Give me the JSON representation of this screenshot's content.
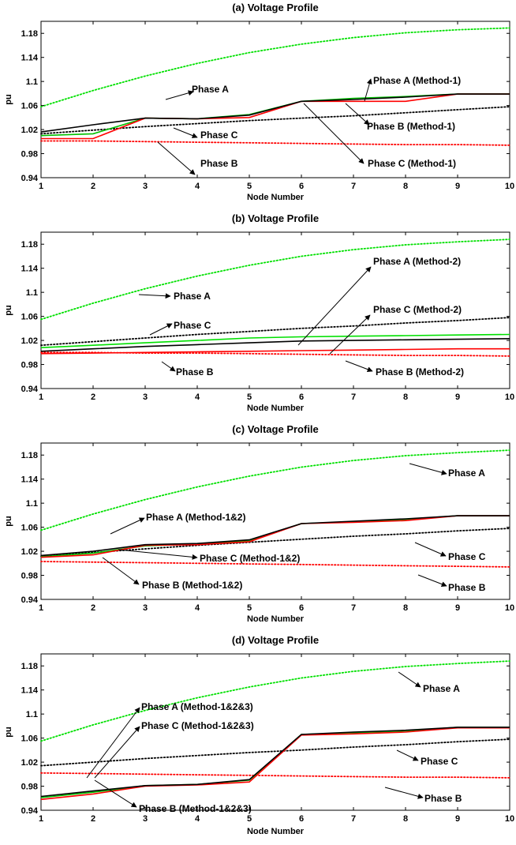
{
  "chart_data": [
    {
      "type": "line",
      "title": "(a) Voltage Profile",
      "xlabel": "Node Number",
      "ylabel": "pu",
      "xlim": [
        1,
        10
      ],
      "ylim": [
        0.94,
        1.2
      ],
      "xticks": [
        "1",
        "2",
        "3",
        "4",
        "5",
        "6",
        "7",
        "8",
        "9",
        "10"
      ],
      "yticks": [
        "0.94",
        "0.98",
        "1.02",
        "1.06",
        "1.1",
        "1.14",
        "1.18"
      ],
      "ytick_values": [
        0.94,
        0.98,
        1.02,
        1.06,
        1.1,
        1.14,
        1.18
      ],
      "series": [
        {
          "name": "Phase A",
          "color": "#00e000",
          "style": "dotted",
          "x": [
            1,
            2,
            3,
            4,
            5,
            6,
            7,
            8,
            9,
            10
          ],
          "y": [
            1.058,
            1.085,
            1.109,
            1.13,
            1.148,
            1.162,
            1.173,
            1.181,
            1.186,
            1.189
          ]
        },
        {
          "name": "Phase C",
          "color": "#000000",
          "style": "dotted",
          "x": [
            1,
            2,
            3,
            4,
            5,
            6,
            7,
            8,
            9,
            10
          ],
          "y": [
            1.013,
            1.019,
            1.025,
            1.03,
            1.035,
            1.039,
            1.043,
            1.048,
            1.053,
            1.058
          ]
        },
        {
          "name": "Phase B",
          "color": "#ff0000",
          "style": "dotted",
          "x": [
            1,
            2,
            3,
            4,
            5,
            6,
            7,
            8,
            9,
            10
          ],
          "y": [
            1.001,
            1.001,
            1.0,
            0.999,
            0.998,
            0.997,
            0.996,
            0.995,
            0.995,
            0.994
          ]
        },
        {
          "name": "Phase A (Method-1)",
          "color": "#00c000",
          "style": "solid",
          "x": [
            1,
            2,
            3,
            4,
            5,
            6,
            7,
            8,
            9,
            10
          ],
          "y": [
            1.01,
            1.013,
            1.039,
            1.038,
            1.045,
            1.067,
            1.072,
            1.075,
            1.079,
            1.079
          ]
        },
        {
          "name": "Phase B (Method-1)",
          "color": "#ff0000",
          "style": "solid",
          "x": [
            1,
            2,
            3,
            4,
            5,
            6,
            7,
            8,
            9,
            10
          ],
          "y": [
            1.005,
            1.005,
            1.039,
            1.038,
            1.04,
            1.067,
            1.067,
            1.067,
            1.079,
            1.079
          ]
        },
        {
          "name": "Phase C (Method-1)",
          "color": "#000000",
          "style": "solid",
          "x": [
            1,
            2,
            3,
            4,
            5,
            6,
            7,
            8,
            9,
            10
          ],
          "y": [
            1.016,
            1.028,
            1.039,
            1.038,
            1.044,
            1.067,
            1.07,
            1.074,
            1.079,
            1.079
          ]
        }
      ],
      "annotations": [
        "Phase A",
        "Phase A (Method-1)",
        "Phase B (Method-1)",
        "Phase C",
        "Phase B",
        "Phase C (Method-1)"
      ]
    },
    {
      "type": "line",
      "title": "(b) Voltage Profile",
      "xlabel": "Node Number",
      "ylabel": "pu",
      "xlim": [
        1,
        10
      ],
      "ylim": [
        0.94,
        1.2
      ],
      "xticks": [
        "1",
        "2",
        "3",
        "4",
        "5",
        "6",
        "7",
        "8",
        "9",
        "10"
      ],
      "yticks": [
        "0.94",
        "0.98",
        "1.02",
        "1.06",
        "1.1",
        "1.14",
        "1.18"
      ],
      "ytick_values": [
        0.94,
        0.98,
        1.02,
        1.06,
        1.1,
        1.14,
        1.18
      ],
      "series": [
        {
          "name": "Phase A",
          "color": "#00e000",
          "style": "dotted",
          "x": [
            1,
            2,
            3,
            4,
            5,
            6,
            7,
            8,
            9,
            10
          ],
          "y": [
            1.055,
            1.082,
            1.106,
            1.127,
            1.145,
            1.16,
            1.171,
            1.179,
            1.184,
            1.188
          ]
        },
        {
          "name": "Phase C",
          "color": "#000000",
          "style": "dotted",
          "x": [
            1,
            2,
            3,
            4,
            5,
            6,
            7,
            8,
            9,
            10
          ],
          "y": [
            1.012,
            1.018,
            1.024,
            1.03,
            1.035,
            1.04,
            1.044,
            1.049,
            1.053,
            1.058
          ]
        },
        {
          "name": "Phase B",
          "color": "#ff0000",
          "style": "dotted",
          "x": [
            1,
            2,
            3,
            4,
            5,
            6,
            7,
            8,
            9,
            10
          ],
          "y": [
            1.0,
            1.0,
            0.999,
            0.999,
            0.998,
            0.997,
            0.996,
            0.995,
            0.995,
            0.994
          ]
        },
        {
          "name": "Phase A (Method-2)",
          "color": "#00e000",
          "style": "solid",
          "x": [
            1,
            2,
            3,
            4,
            5,
            6,
            7,
            8,
            9,
            10
          ],
          "y": [
            1.008,
            1.012,
            1.016,
            1.02,
            1.024,
            1.026,
            1.027,
            1.028,
            1.029,
            1.03
          ]
        },
        {
          "name": "Phase C (Method-2)",
          "color": "#000000",
          "style": "solid",
          "x": [
            1,
            2,
            3,
            4,
            5,
            6,
            7,
            8,
            9,
            10
          ],
          "y": [
            1.002,
            1.006,
            1.01,
            1.013,
            1.016,
            1.019,
            1.02,
            1.021,
            1.022,
            1.023
          ]
        },
        {
          "name": "Phase B (Method-2)",
          "color": "#ff0000",
          "style": "solid",
          "x": [
            1,
            2,
            3,
            4,
            5,
            6,
            7,
            8,
            9,
            10
          ],
          "y": [
            0.998,
            0.999,
            1.0,
            1.001,
            1.002,
            1.003,
            1.004,
            1.005,
            1.006,
            1.006
          ]
        }
      ],
      "annotations": [
        "Phase A",
        "Phase C",
        "Phase B",
        "Phase A (Method-2)",
        "Phase C (Method-2)",
        "Phase B (Method-2)"
      ]
    },
    {
      "type": "line",
      "title": "(c) Voltage Profile",
      "xlabel": "Node Number",
      "ylabel": "pu",
      "xlim": [
        1,
        10
      ],
      "ylim": [
        0.94,
        1.2
      ],
      "xticks": [
        "1",
        "2",
        "3",
        "4",
        "5",
        "6",
        "7",
        "8",
        "9",
        "10"
      ],
      "yticks": [
        "0.94",
        "0.98",
        "1.02",
        "1.06",
        "1.1",
        "1.14",
        "1.18"
      ],
      "ytick_values": [
        0.94,
        0.98,
        1.02,
        1.06,
        1.1,
        1.14,
        1.18
      ],
      "series": [
        {
          "name": "Phase A",
          "color": "#00e000",
          "style": "dotted",
          "x": [
            1,
            2,
            3,
            4,
            5,
            6,
            7,
            8,
            9,
            10
          ],
          "y": [
            1.055,
            1.082,
            1.106,
            1.127,
            1.145,
            1.16,
            1.171,
            1.179,
            1.184,
            1.188
          ]
        },
        {
          "name": "Phase C",
          "color": "#000000",
          "style": "dotted",
          "x": [
            1,
            2,
            3,
            4,
            5,
            6,
            7,
            8,
            9,
            10
          ],
          "y": [
            1.012,
            1.018,
            1.024,
            1.03,
            1.035,
            1.04,
            1.045,
            1.049,
            1.054,
            1.058
          ]
        },
        {
          "name": "Phase B",
          "color": "#ff0000",
          "style": "dotted",
          "x": [
            1,
            2,
            3,
            4,
            5,
            6,
            7,
            8,
            9,
            10
          ],
          "y": [
            1.003,
            1.002,
            1.001,
            1.0,
            0.999,
            0.998,
            0.997,
            0.996,
            0.995,
            0.994
          ]
        },
        {
          "name": "Phase A (Method-1&2)",
          "color": "#00c000",
          "style": "solid",
          "x": [
            1,
            2,
            3,
            4,
            5,
            6,
            7,
            8,
            9,
            10
          ],
          "y": [
            1.011,
            1.017,
            1.029,
            1.032,
            1.038,
            1.066,
            1.069,
            1.073,
            1.079,
            1.079
          ]
        },
        {
          "name": "Phase B (Method-1&2)",
          "color": "#ff0000",
          "style": "solid",
          "x": [
            1,
            2,
            3,
            4,
            5,
            6,
            7,
            8,
            9,
            10
          ],
          "y": [
            1.01,
            1.014,
            1.03,
            1.031,
            1.036,
            1.066,
            1.068,
            1.071,
            1.079,
            1.079
          ]
        },
        {
          "name": "Phase C (Method-1&2)",
          "color": "#000000",
          "style": "solid",
          "x": [
            1,
            2,
            3,
            4,
            5,
            6,
            7,
            8,
            9,
            10
          ],
          "y": [
            1.013,
            1.02,
            1.031,
            1.033,
            1.039,
            1.066,
            1.07,
            1.074,
            1.079,
            1.079
          ]
        }
      ],
      "annotations": [
        "Phase A",
        "Phase A (Method-1&2)",
        "Phase C (Method-1&2)",
        "Phase C",
        "Phase B (Method-1&2)",
        "Phase B"
      ]
    },
    {
      "type": "line",
      "title": "(d) Voltage Profile",
      "xlabel": "Node Number",
      "ylabel": "pu",
      "xlim": [
        1,
        10
      ],
      "ylim": [
        0.94,
        1.2
      ],
      "xticks": [
        "1",
        "2",
        "3",
        "4",
        "5",
        "6",
        "7",
        "8",
        "9",
        "10"
      ],
      "yticks": [
        "0.94",
        "0.98",
        "1.02",
        "1.06",
        "1.1",
        "1.14",
        "1.18"
      ],
      "ytick_values": [
        0.94,
        0.98,
        1.02,
        1.06,
        1.1,
        1.14,
        1.18
      ],
      "series": [
        {
          "name": "Phase A",
          "color": "#00e000",
          "style": "dotted",
          "x": [
            1,
            2,
            3,
            4,
            5,
            6,
            7,
            8,
            9,
            10
          ],
          "y": [
            1.055,
            1.082,
            1.106,
            1.127,
            1.145,
            1.16,
            1.171,
            1.179,
            1.184,
            1.188
          ]
        },
        {
          "name": "Phase C",
          "color": "#000000",
          "style": "dotted",
          "x": [
            1,
            2,
            3,
            4,
            5,
            6,
            7,
            8,
            9,
            10
          ],
          "y": [
            1.014,
            1.02,
            1.026,
            1.031,
            1.036,
            1.04,
            1.045,
            1.049,
            1.054,
            1.058
          ]
        },
        {
          "name": "Phase B",
          "color": "#ff0000",
          "style": "dotted",
          "x": [
            1,
            2,
            3,
            4,
            5,
            6,
            7,
            8,
            9,
            10
          ],
          "y": [
            1.002,
            1.001,
            1.0,
            0.999,
            0.998,
            0.997,
            0.996,
            0.995,
            0.995,
            0.994
          ]
        },
        {
          "name": "Phase A (Method-1&2&3)",
          "color": "#00c000",
          "style": "solid",
          "x": [
            1,
            2,
            3,
            4,
            5,
            6,
            7,
            8,
            9,
            10
          ],
          "y": [
            0.961,
            0.97,
            0.981,
            0.983,
            0.99,
            1.066,
            1.069,
            1.072,
            1.078,
            1.078
          ]
        },
        {
          "name": "Phase B (Method-1&2&3)",
          "color": "#ff0000",
          "style": "solid",
          "x": [
            1,
            2,
            3,
            4,
            5,
            6,
            7,
            8,
            9,
            10
          ],
          "y": [
            0.958,
            0.967,
            0.98,
            0.982,
            0.987,
            1.065,
            1.067,
            1.07,
            1.077,
            1.077
          ]
        },
        {
          "name": "Phase C (Method-1&2&3)",
          "color": "#000000",
          "style": "solid",
          "x": [
            1,
            2,
            3,
            4,
            5,
            6,
            7,
            8,
            9,
            10
          ],
          "y": [
            0.963,
            0.972,
            0.981,
            0.983,
            0.991,
            1.066,
            1.07,
            1.073,
            1.078,
            1.078
          ]
        }
      ],
      "annotations": [
        "Phase A",
        "Phase A (Method-1&2&3)",
        "Phase C (Method-1&2&3)",
        "Phase C",
        "Phase B (Method-1&2&3)",
        "Phase B"
      ]
    }
  ]
}
